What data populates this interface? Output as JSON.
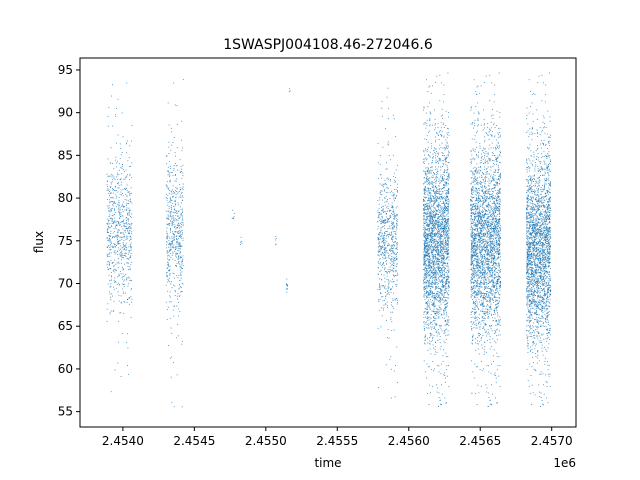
{
  "chart_data": {
    "type": "scatter",
    "title": "1SWASPJ004108.46-272046.6",
    "xlabel": "time",
    "ylabel": "flux",
    "x_offset_label": "1e6",
    "x_scale": 1000000,
    "xlim": [
      2.4537,
      2.45717
    ],
    "ylim": [
      53.2,
      96.4
    ],
    "x_ticks": [
      2.454,
      2.4545,
      2.455,
      2.4555,
      2.456,
      2.4565,
      2.457
    ],
    "x_tick_labels": [
      "2.4540",
      "2.4545",
      "2.4550",
      "2.4555",
      "2.4560",
      "2.4565",
      "2.4570"
    ],
    "y_ticks": [
      55,
      60,
      65,
      70,
      75,
      80,
      85,
      90,
      95
    ],
    "y_tick_labels": [
      "55",
      "60",
      "65",
      "70",
      "75",
      "80",
      "85",
      "90",
      "95"
    ],
    "grid": false,
    "marker_color": "#1f77b4",
    "clusters": [
      {
        "x_start": 2453885,
        "x_end": 2454060,
        "y_center": 76,
        "y_spread": 4.5,
        "y_min": 56,
        "y_max": 94.5,
        "n": 700
      },
      {
        "x_start": 2454300,
        "x_end": 2454420,
        "y_center": 76,
        "y_spread": 4.5,
        "y_min": 55.5,
        "y_max": 94.5,
        "n": 550
      },
      {
        "x_start": 2454760,
        "x_end": 2454780,
        "y_center": 77.8,
        "y_spread": 0.5,
        "y_min": 77,
        "y_max": 79.5,
        "n": 6
      },
      {
        "x_start": 2454820,
        "x_end": 2454830,
        "y_center": 75,
        "y_spread": 0.4,
        "y_min": 74.3,
        "y_max": 75.6,
        "n": 5
      },
      {
        "x_start": 2455060,
        "x_end": 2455075,
        "y_center": 75,
        "y_spread": 0.4,
        "y_min": 74.3,
        "y_max": 75.6,
        "n": 5
      },
      {
        "x_start": 2455140,
        "x_end": 2455150,
        "y_center": 70,
        "y_spread": 0.5,
        "y_min": 69.2,
        "y_max": 70.8,
        "n": 12
      },
      {
        "x_start": 2455160,
        "x_end": 2455170,
        "y_center": 92.5,
        "y_spread": 0.3,
        "y_min": 92,
        "y_max": 93,
        "n": 3
      },
      {
        "x_start": 2455780,
        "x_end": 2455920,
        "y_center": 75,
        "y_spread": 4,
        "y_min": 56,
        "y_max": 93,
        "n": 650
      },
      {
        "x_start": 2456100,
        "x_end": 2456280,
        "y_center": 75,
        "y_spread": 5.5,
        "y_min": 55.2,
        "y_max": 94.8,
        "n": 2600
      },
      {
        "x_start": 2456430,
        "x_end": 2456640,
        "y_center": 75,
        "y_spread": 5.5,
        "y_min": 55.2,
        "y_max": 94.8,
        "n": 2700
      },
      {
        "x_start": 2456820,
        "x_end": 2456990,
        "y_center": 74,
        "y_spread": 5.5,
        "y_min": 55.2,
        "y_max": 94.8,
        "n": 2400
      }
    ]
  }
}
